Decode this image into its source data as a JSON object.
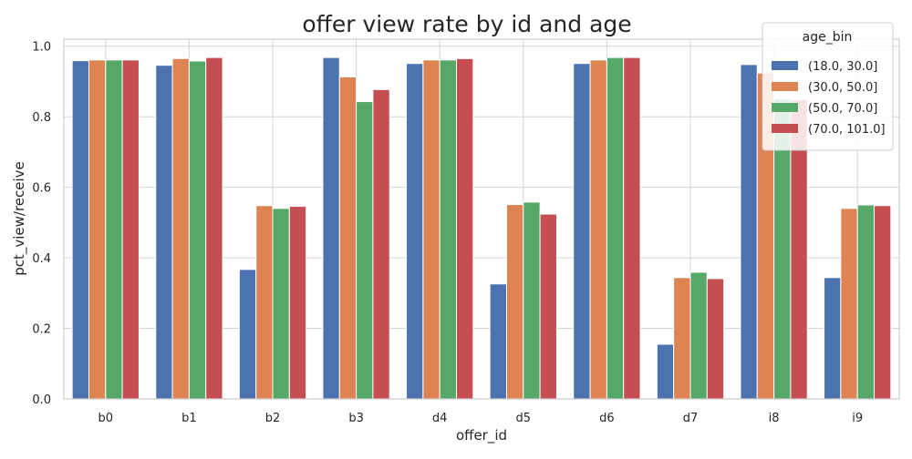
{
  "chart_data": {
    "type": "bar",
    "title": "offer view rate by id and age",
    "xlabel": "offer_id",
    "ylabel": "pct_view/receive",
    "categories": [
      "b0",
      "b1",
      "b2",
      "b3",
      "d4",
      "d5",
      "d6",
      "d7",
      "i8",
      "i9"
    ],
    "ylim": [
      0,
      1.02
    ],
    "yticks": [
      "0.0",
      "0.2",
      "0.4",
      "0.6",
      "0.8",
      "1.0"
    ],
    "grid": true,
    "legend": {
      "title": "age_bin",
      "placement": "top-right"
    },
    "series": [
      {
        "name": "(18.0, 30.0]",
        "color": "#4c72b0",
        "values": [
          0.959,
          0.946,
          0.367,
          0.968,
          0.951,
          0.326,
          0.951,
          0.155,
          0.948,
          0.344
        ]
      },
      {
        "name": "(30.0, 50.0]",
        "color": "#dd8452",
        "values": [
          0.961,
          0.965,
          0.548,
          0.913,
          0.961,
          0.551,
          0.961,
          0.344,
          0.924,
          0.54
        ]
      },
      {
        "name": "(50.0, 70.0]",
        "color": "#55a868",
        "values": [
          0.961,
          0.958,
          0.54,
          0.843,
          0.961,
          0.558,
          0.968,
          0.359,
          0.85,
          0.55
        ]
      },
      {
        "name": "(70.0, 101.0]",
        "color": "#c44e52",
        "values": [
          0.961,
          0.968,
          0.546,
          0.877,
          0.965,
          0.524,
          0.968,
          0.341,
          0.848,
          0.548
        ]
      }
    ]
  }
}
